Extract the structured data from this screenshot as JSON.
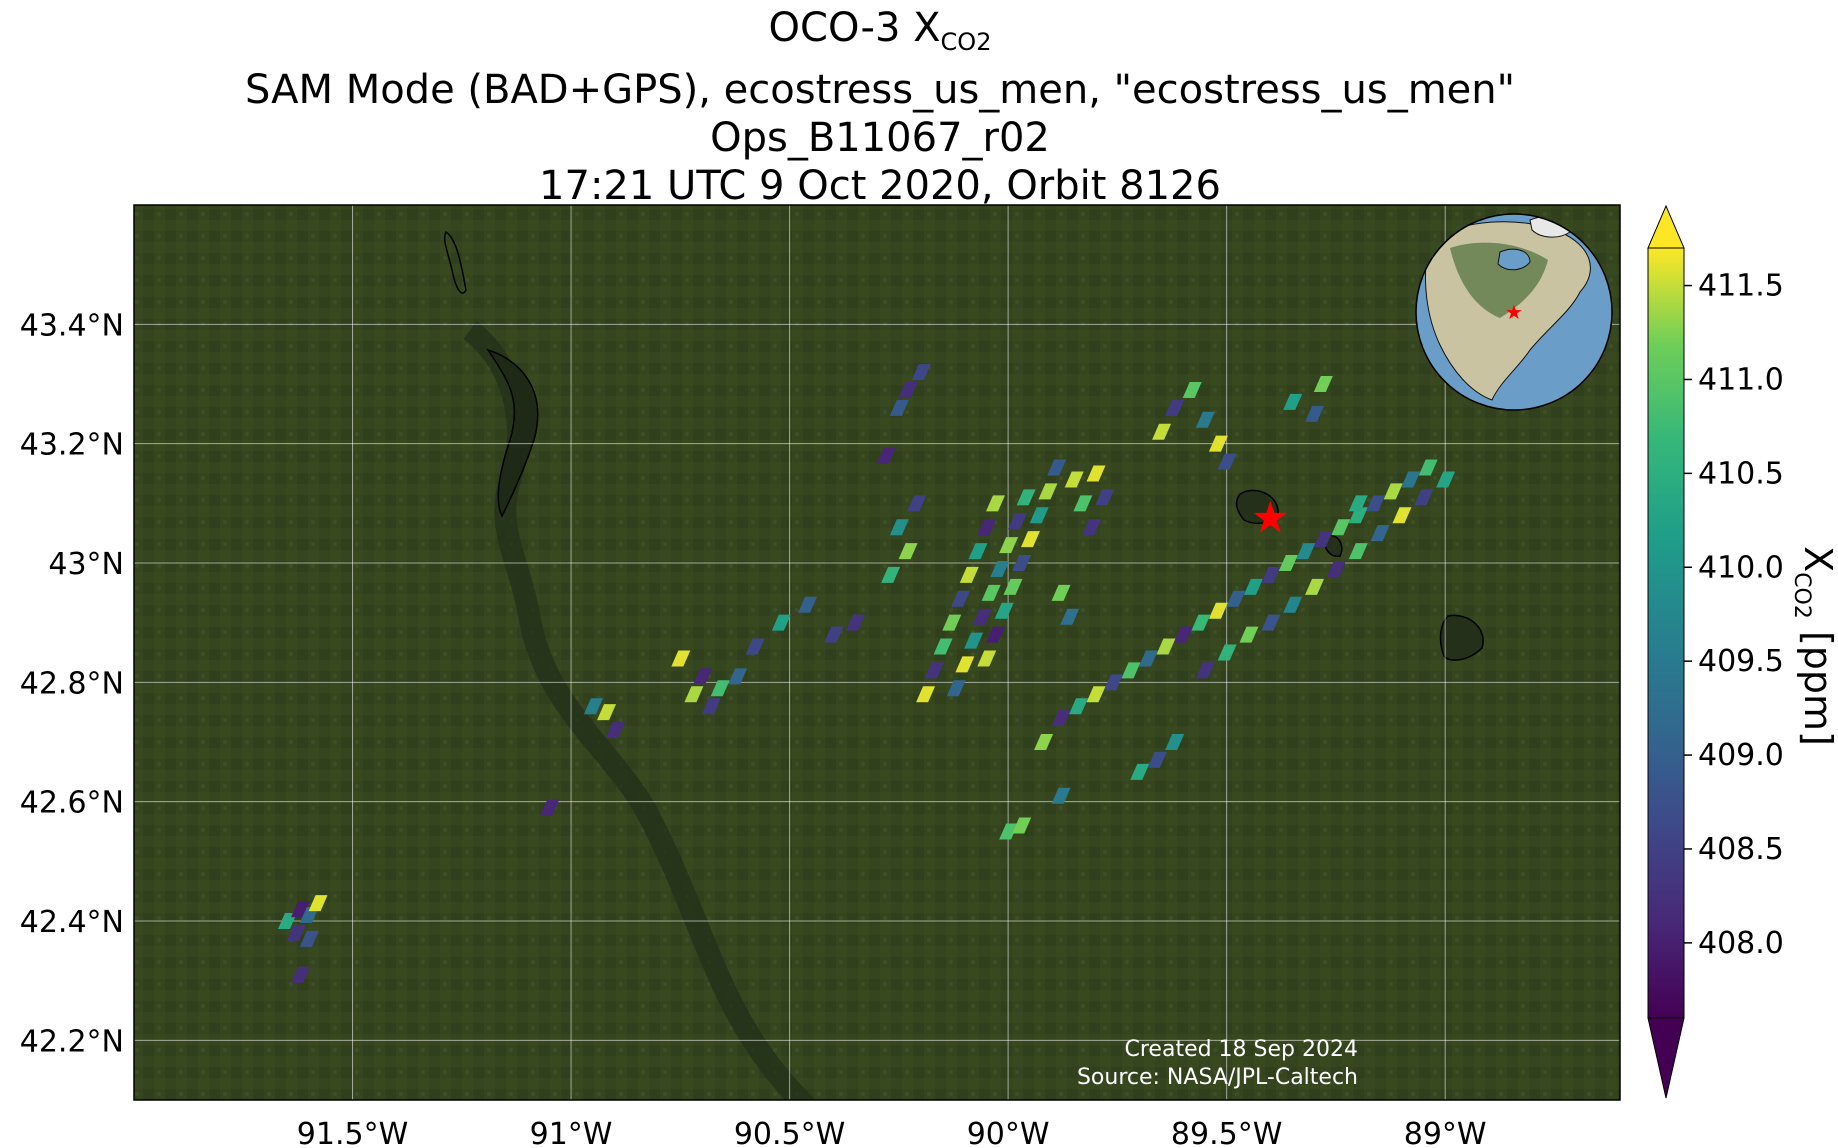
{
  "title": {
    "line1_prefix": "OCO-3 X",
    "line1_sub": "CO2",
    "line2": "SAM Mode (BAD+GPS), ecostress_us_men, \"ecostress_us_men\"",
    "line3": "Ops_B11067_r02",
    "line4": "17:21 UTC 9 Oct 2020, Orbit 8126"
  },
  "map": {
    "lon_range": [
      -92.0,
      -88.6
    ],
    "lat_range": [
      42.1,
      43.6
    ],
    "lon_ticks": [
      {
        "value": -91.5,
        "label": "91.5°W"
      },
      {
        "value": -91.0,
        "label": "91°W"
      },
      {
        "value": -90.5,
        "label": "90.5°W"
      },
      {
        "value": -90.0,
        "label": "90°W"
      },
      {
        "value": -89.5,
        "label": "89.5°W"
      },
      {
        "value": -89.0,
        "label": "89°W"
      }
    ],
    "lat_ticks": [
      {
        "value": 42.2,
        "label": "42.2°N"
      },
      {
        "value": 42.4,
        "label": "42.4°N"
      },
      {
        "value": 42.6,
        "label": "42.6°N"
      },
      {
        "value": 42.8,
        "label": "42.8°N"
      },
      {
        "value": 43.0,
        "label": "43°N"
      },
      {
        "value": 43.2,
        "label": "43.2°N"
      },
      {
        "value": 43.4,
        "label": "43.4°N"
      }
    ],
    "target": {
      "lon": -89.4,
      "lat": 43.075,
      "color": "#ff0000",
      "icon": "star-icon"
    },
    "background_color": "#34451f"
  },
  "colorbar": {
    "min": 407.6,
    "max": 411.7,
    "ticks": [
      "411.5",
      "411.0",
      "410.5",
      "410.0",
      "409.5",
      "409.0",
      "408.5",
      "408.0"
    ],
    "label_prefix": "X",
    "label_sub": "CO2",
    "label_suffix": " [ppm]",
    "extend": "both",
    "colormap": "viridis"
  },
  "credits": {
    "created": "Created 18 Sep 2024",
    "source": "Source: NASA/JPL-Caltech"
  },
  "chart_data": {
    "type": "scatter",
    "x_unit": "longitude (°E)",
    "y_unit": "latitude (°N)",
    "value_unit": "ppm",
    "swaths": [
      {
        "name": "",
        "points": [
          [
            -90.19,
            42.78,
            411.6
          ],
          [
            -90.17,
            42.82,
            408.3
          ],
          [
            -90.15,
            42.86,
            410.8
          ],
          [
            -90.13,
            42.9,
            411.2
          ],
          [
            -90.11,
            42.94,
            408.6
          ],
          [
            -90.09,
            42.98,
            411.5
          ],
          [
            -90.07,
            43.02,
            410.2
          ],
          [
            -90.05,
            43.06,
            408.1
          ],
          [
            -90.03,
            43.1,
            411.4
          ],
          [
            -90.12,
            42.79,
            409.1
          ],
          [
            -90.1,
            42.83,
            411.6
          ],
          [
            -90.08,
            42.87,
            410.0
          ],
          [
            -90.06,
            42.91,
            408.2
          ],
          [
            -90.04,
            42.95,
            411.0
          ],
          [
            -90.02,
            42.99,
            409.6
          ],
          [
            -90.0,
            43.03,
            411.3
          ],
          [
            -89.98,
            43.07,
            408.4
          ],
          [
            -89.96,
            43.11,
            410.6
          ],
          [
            -90.05,
            42.84,
            411.5
          ],
          [
            -90.03,
            42.88,
            408.0
          ],
          [
            -90.01,
            42.92,
            410.3
          ],
          [
            -89.99,
            42.96,
            411.1
          ],
          [
            -89.97,
            43.0,
            408.7
          ],
          [
            -89.95,
            43.04,
            411.6
          ],
          [
            -89.93,
            43.08,
            410.1
          ],
          [
            -89.91,
            43.12,
            411.4
          ],
          [
            -89.89,
            43.16,
            408.9
          ],
          [
            -89.85,
            43.14,
            411.5
          ],
          [
            -89.83,
            43.1,
            410.9
          ],
          [
            -89.81,
            43.06,
            408.3
          ],
          [
            -89.88,
            42.95,
            411.2
          ],
          [
            -89.86,
            42.91,
            409.3
          ],
          [
            -89.8,
            43.15,
            411.6
          ],
          [
            -89.78,
            43.11,
            408.5
          ]
        ]
      },
      {
        "name": "",
        "points": [
          [
            -89.92,
            42.7,
            411.3
          ],
          [
            -89.88,
            42.74,
            408.2
          ],
          [
            -89.84,
            42.76,
            410.4
          ],
          [
            -89.8,
            42.78,
            411.5
          ],
          [
            -89.76,
            42.8,
            408.6
          ],
          [
            -89.72,
            42.82,
            410.9
          ],
          [
            -89.68,
            42.84,
            409.2
          ],
          [
            -89.64,
            42.86,
            411.4
          ],
          [
            -89.6,
            42.88,
            408.1
          ],
          [
            -89.56,
            42.9,
            410.7
          ],
          [
            -89.52,
            42.92,
            411.6
          ],
          [
            -89.48,
            42.94,
            409.0
          ],
          [
            -89.44,
            42.96,
            410.2
          ],
          [
            -89.4,
            42.98,
            408.4
          ],
          [
            -89.36,
            43.0,
            411.1
          ],
          [
            -89.32,
            43.02,
            409.8
          ],
          [
            -89.28,
            43.04,
            408.3
          ],
          [
            -89.24,
            43.06,
            411.0
          ],
          [
            -89.2,
            43.08,
            410.5
          ],
          [
            -89.16,
            43.1,
            408.7
          ],
          [
            -89.12,
            43.12,
            411.4
          ],
          [
            -89.08,
            43.14,
            409.4
          ],
          [
            -89.04,
            43.16,
            410.8
          ]
        ]
      },
      {
        "name": "",
        "points": [
          [
            -89.55,
            42.82,
            408.3
          ],
          [
            -89.5,
            42.85,
            410.6
          ],
          [
            -89.45,
            42.88,
            411.2
          ],
          [
            -89.4,
            42.9,
            408.8
          ],
          [
            -89.35,
            42.93,
            409.7
          ],
          [
            -89.3,
            42.96,
            411.4
          ],
          [
            -89.25,
            42.99,
            408.2
          ],
          [
            -89.2,
            43.02,
            410.9
          ],
          [
            -89.15,
            43.05,
            409.1
          ],
          [
            -89.1,
            43.08,
            411.6
          ],
          [
            -89.05,
            43.11,
            408.5
          ],
          [
            -89.0,
            43.14,
            410.3
          ]
        ]
      },
      {
        "name": "",
        "points": [
          [
            -89.65,
            43.22,
            411.5
          ],
          [
            -89.62,
            43.26,
            408.4
          ],
          [
            -89.58,
            43.29,
            411.0
          ],
          [
            -89.55,
            43.24,
            409.5
          ],
          [
            -89.52,
            43.2,
            411.6
          ],
          [
            -89.5,
            43.17,
            408.7
          ],
          [
            -89.35,
            43.27,
            410.2
          ],
          [
            -89.3,
            43.25,
            408.9
          ],
          [
            -89.28,
            43.3,
            411.2
          ],
          [
            -89.2,
            43.1,
            410.4
          ]
        ]
      },
      {
        "name": "",
        "points": [
          [
            -90.25,
            43.06,
            409.9
          ],
          [
            -90.23,
            43.02,
            411.3
          ],
          [
            -90.21,
            43.1,
            408.5
          ],
          [
            -90.27,
            42.98,
            410.6
          ],
          [
            -90.25,
            43.26,
            408.9
          ],
          [
            -90.23,
            43.29,
            408.2
          ],
          [
            -90.2,
            43.32,
            408.6
          ],
          [
            -90.28,
            43.18,
            408.1
          ]
        ]
      },
      {
        "name": "",
        "points": [
          [
            -90.75,
            42.84,
            411.6
          ],
          [
            -90.7,
            42.81,
            408.1
          ],
          [
            -90.66,
            42.79,
            410.8
          ],
          [
            -90.62,
            42.81,
            409.1
          ],
          [
            -90.68,
            42.76,
            408.4
          ],
          [
            -90.72,
            42.78,
            411.4
          ],
          [
            -90.58,
            42.86,
            408.6
          ],
          [
            -90.52,
            42.9,
            410.2
          ],
          [
            -90.46,
            42.93,
            409.0
          ],
          [
            -90.4,
            42.88,
            408.5
          ],
          [
            -90.35,
            42.9,
            408.3
          ]
        ]
      },
      {
        "name": "",
        "points": [
          [
            -90.95,
            42.76,
            409.6
          ],
          [
            -90.92,
            42.75,
            411.5
          ],
          [
            -90.9,
            42.72,
            408.2
          ]
        ]
      },
      {
        "name": "",
        "points": [
          [
            -91.05,
            42.59,
            408.1
          ]
        ]
      },
      {
        "name": "",
        "points": [
          [
            -91.65,
            42.4,
            410.4
          ],
          [
            -91.62,
            42.42,
            408.0
          ],
          [
            -91.6,
            42.41,
            409.2
          ],
          [
            -91.58,
            42.43,
            411.6
          ],
          [
            -91.63,
            42.38,
            408.3
          ],
          [
            -91.6,
            42.37,
            408.8
          ],
          [
            -91.62,
            42.31,
            408.2
          ]
        ]
      },
      {
        "name": "",
        "points": [
          [
            -90.0,
            42.55,
            410.9
          ],
          [
            -89.97,
            42.56,
            411.2
          ],
          [
            -89.88,
            42.61,
            409.5
          ],
          [
            -89.7,
            42.65,
            410.4
          ],
          [
            -89.66,
            42.67,
            408.7
          ],
          [
            -89.62,
            42.7,
            409.9
          ]
        ]
      }
    ]
  }
}
